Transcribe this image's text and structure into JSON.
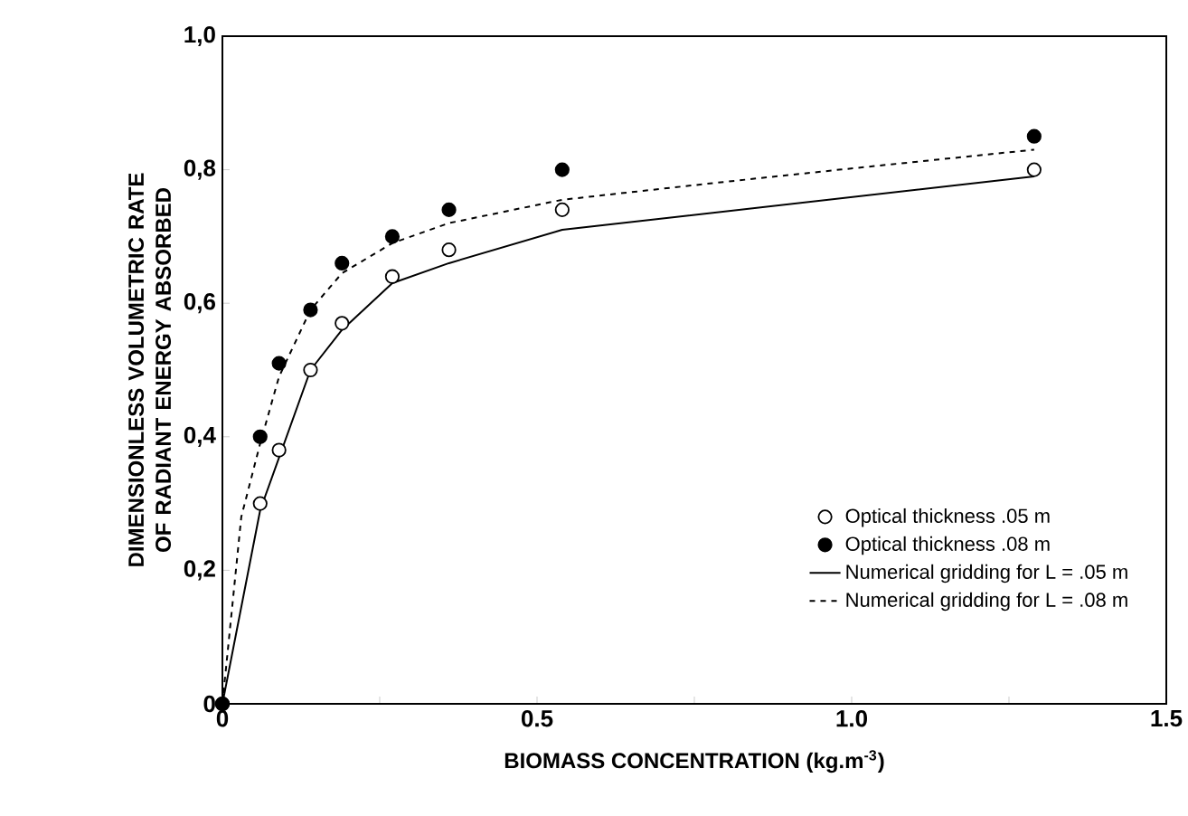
{
  "chart_data": {
    "type": "scatter",
    "xlabel": "BIOMASS CONCENTRATION (kg.m$^{-3}$)",
    "ylabel": "DIMENSIONLESS VOLUMETRIC RATE OF RADIANT ENERGY ABSORBED",
    "xlim": [
      0,
      1.5
    ],
    "ylim": [
      0,
      1.0
    ],
    "xticks": [
      0,
      {
        "value": 0.25,
        "label": null
      },
      {
        "value": 0.5,
        "label": "0.5"
      },
      {
        "value": 0.75,
        "label": null
      },
      {
        "value": 1.0,
        "label": "1.0"
      },
      {
        "value": 1.25,
        "label": null
      },
      {
        "value": 1.5,
        "label": "1.5"
      }
    ],
    "yticks": [
      0,
      {
        "value": 0.2,
        "label": "0,2"
      },
      {
        "value": 0.4,
        "label": "0,4"
      },
      {
        "value": 0.6,
        "label": "0,6"
      },
      {
        "value": 0.8,
        "label": "0,8"
      },
      {
        "value": 1.0,
        "label": "1,0"
      }
    ],
    "legend": "bottom right",
    "grid": false,
    "marker": "circle",
    "series": [
      {
        "name": "Optical thickness .05 m",
        "color": "#ffffff",
        "x": [
          0,
          0.06,
          0.09,
          0.14,
          0.19,
          0.27,
          0.36,
          0.54,
          1.29
        ],
        "values": [
          0,
          0.3,
          0.38,
          0.5,
          0.57,
          0.64,
          0.68,
          0.74,
          0.8
        ]
      },
      {
        "name": "Optical thickness .08 m",
        "color": "#000000",
        "x": [
          0,
          0.06,
          0.09,
          0.14,
          0.19,
          0.27,
          0.36,
          0.54,
          1.29
        ],
        "values": [
          0,
          0.4,
          0.51,
          0.59,
          0.66,
          0.7,
          0.74,
          0.8,
          0.85
        ]
      },
      {
        "name": "Numerical gridding for L = .05 m",
        "type": "line",
        "marker": "none",
        "line_style": "solid",
        "color": "#000000",
        "x": [
          0,
          0.06,
          0.14,
          0.19,
          0.27,
          0.36,
          0.54,
          1.29
        ],
        "values": [
          0,
          0.29,
          0.5,
          0.56,
          0.63,
          0.66,
          0.71,
          0.79
        ]
      },
      {
        "name": "Numerical gridding for L = .08 m",
        "type": "line",
        "marker": "none",
        "line_style": "dashed",
        "color": "#000000",
        "x": [
          0,
          0.03,
          0.06,
          0.09,
          0.14,
          0.19,
          0.27,
          0.36,
          0.54,
          0.78,
          0.98,
          1.29
        ],
        "values": [
          0,
          0.28,
          0.39,
          0.49,
          0.59,
          0.645,
          0.69,
          0.72,
          0.755,
          0.78,
          0.8,
          0.83
        ]
      }
    ]
  }
}
